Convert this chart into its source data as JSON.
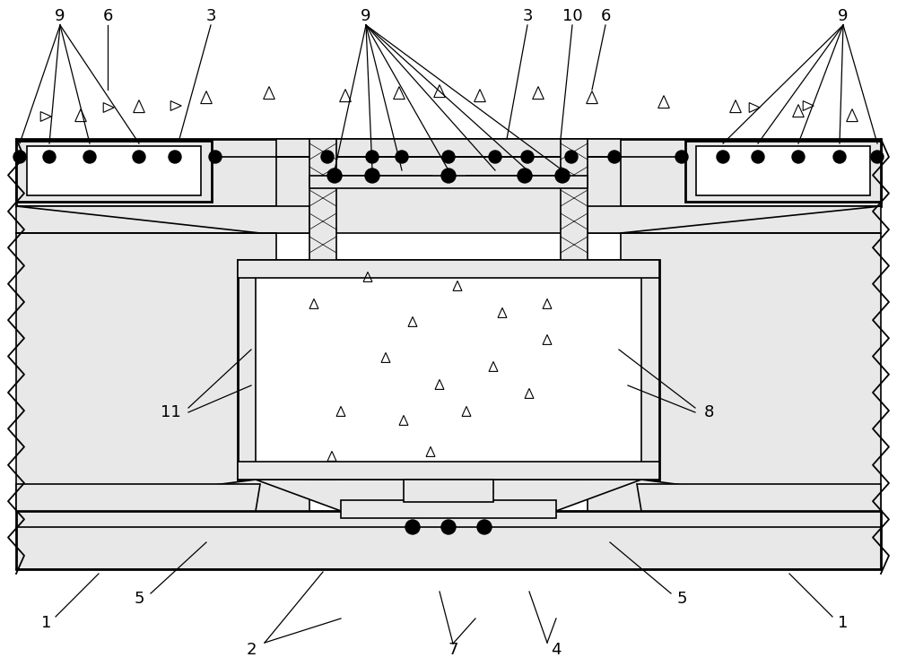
{
  "bg_color": "#ffffff",
  "gray_fill": "#d0d0d0",
  "light_gray": "#e8e8e8",
  "white": "#ffffff",
  "black": "#000000",
  "lw_thin": 0.7,
  "lw_med": 1.2,
  "lw_thick": 2.0,
  "label_fs": 13
}
